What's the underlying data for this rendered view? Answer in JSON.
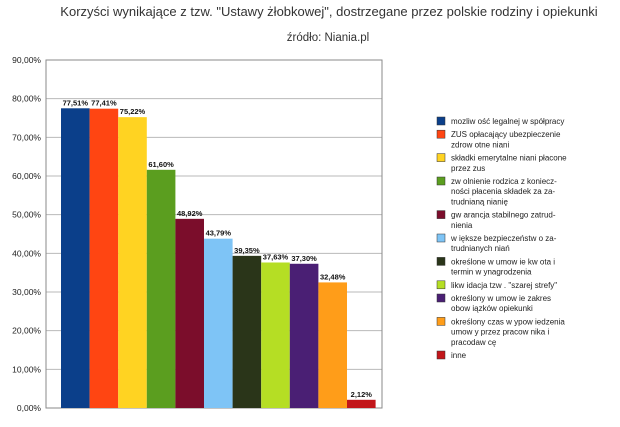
{
  "chart_data": {
    "type": "bar",
    "title": "Korzyści wynikające z tzw. \"Ustawy żłobkowej\", dostrzegane przez polskie rodziny i opiekunki",
    "subtitle": "źródło: Niania.pl",
    "xlabel": "",
    "ylabel": "",
    "ylim": [
      0,
      90
    ],
    "yticks": [
      "0,00%",
      "10,00%",
      "20,00%",
      "30,00%",
      "40,00%",
      "50,00%",
      "60,00%",
      "70,00%",
      "80,00%",
      "90,00%"
    ],
    "grid": true,
    "legend_position": "right",
    "series": [
      {
        "name": "mozliw ość legalnej w spółpracy",
        "value": 77.51,
        "label": "77,51%",
        "color": "#0b3f8a",
        "legend_lines": [
          "mozliw ość legalnej w spółpracy"
        ]
      },
      {
        "name": "ZUS opłacający ubezpieczenie zdrow otne niani",
        "value": 77.41,
        "label": "77,41%",
        "color": "#ff4512",
        "legend_lines": [
          "ZUS opłacający ubezpieczenie",
          "zdrow otne niani"
        ]
      },
      {
        "name": "składki emerytalne niani płacone przez zus",
        "value": 75.22,
        "label": "75,22%",
        "color": "#ffd322",
        "legend_lines": [
          "składki emerytalne niani płacone",
          "przez zus"
        ]
      },
      {
        "name": "zw olnienie rodzica z konieczności płacenia składek za zatrudnianą nianię",
        "value": 61.6,
        "label": "61,60%",
        "color": "#5b9e1f",
        "legend_lines": [
          "zw olnienie rodzica z koniecz-",
          "ności płacenia składek za za-",
          "trudnianą nianię"
        ]
      },
      {
        "name": "gw arancja stabilnego zatrudnienia",
        "value": 48.92,
        "label": "48,92%",
        "color": "#7b0d2b",
        "legend_lines": [
          "gw arancja stabilnego zatrud-",
          "nienia"
        ]
      },
      {
        "name": "w iększe bezpieczeństw o zatrudnianych niań",
        "value": 43.79,
        "label": "43,79%",
        "color": "#7ec4f6",
        "legend_lines": [
          "w iększe bezpieczeństw o za-",
          "trudnianych niań"
        ]
      },
      {
        "name": "określone w umow ie kw ota i termin w ynagrodzenia",
        "value": 39.35,
        "label": "39,35%",
        "color": "#2a3519",
        "legend_lines": [
          "określone w umow ie kw ota i",
          "termin w ynagrodzenia"
        ]
      },
      {
        "name": "likw idacja tzw . \"szarej strefy\"",
        "value": 37.63,
        "label": "37,63%",
        "color": "#b5de24",
        "legend_lines": [
          "likw idacja tzw . \"szarej strefy\""
        ]
      },
      {
        "name": "określony w umow ie zakres obow iązków opiekunki",
        "value": 37.3,
        "label": "37,30%",
        "color": "#4a1f74",
        "legend_lines": [
          "określony w umow ie zakres",
          "obow iązków opiekunki"
        ]
      },
      {
        "name": "określony czas w ypow iedzenia umow y przez pracow nika i pracodaw cę",
        "value": 32.48,
        "label": "32,48%",
        "color": "#ff9d19",
        "legend_lines": [
          "określony czas w ypow iedzenia",
          "umow y przez pracow nika i",
          "pracodaw cę"
        ]
      },
      {
        "name": "inne",
        "value": 2.12,
        "label": "2,12%",
        "color": "#c2161a",
        "legend_lines": [
          "inne"
        ]
      }
    ]
  }
}
